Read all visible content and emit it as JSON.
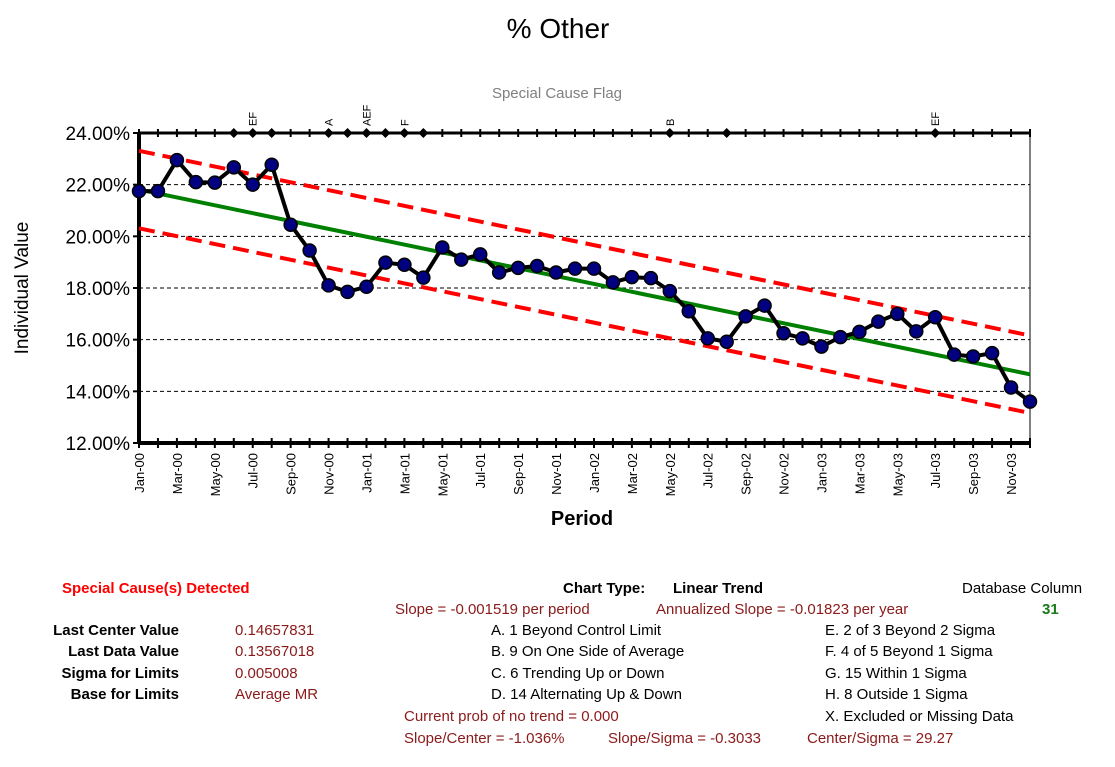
{
  "chart_data": {
    "type": "line",
    "title": "% Other",
    "flag_title": "Special Cause Flag",
    "xlabel": "Period",
    "ylabel": "Individual Value",
    "ylim": [
      0.12,
      0.24
    ],
    "yticks": [
      0.12,
      0.14,
      0.16,
      0.18,
      0.2,
      0.22,
      0.24
    ],
    "ytick_labels": [
      "12.00%",
      "14.00%",
      "16.00%",
      "18.00%",
      "20.00%",
      "22.00%",
      "24.00%"
    ],
    "grid": "horizontal dashed",
    "periods": [
      "Jan-00",
      "Feb-00",
      "Mar-00",
      "Apr-00",
      "May-00",
      "Jun-00",
      "Jul-00",
      "Aug-00",
      "Sep-00",
      "Oct-00",
      "Nov-00",
      "Dec-00",
      "Jan-01",
      "Feb-01",
      "Mar-01",
      "Apr-01",
      "May-01",
      "Jun-01",
      "Jul-01",
      "Aug-01",
      "Sep-01",
      "Oct-01",
      "Nov-01",
      "Dec-01",
      "Jan-02",
      "Feb-02",
      "Mar-02",
      "Apr-02",
      "May-02",
      "Jun-02",
      "Jul-02",
      "Aug-02",
      "Sep-02",
      "Oct-02",
      "Nov-02",
      "Dec-02",
      "Jan-03",
      "Feb-03",
      "Mar-03",
      "Apr-03",
      "May-03",
      "Jun-03",
      "Jul-03",
      "Aug-03",
      "Sep-03",
      "Oct-03",
      "Nov-03",
      "Dec-03"
    ],
    "x_tick_labels": [
      "Jan-00",
      "Mar-00",
      "May-00",
      "Jul-00",
      "Sep-00",
      "Nov-00",
      "Jan-01",
      "Mar-01",
      "May-01",
      "Jul-01",
      "Sep-01",
      "Nov-01",
      "Jan-02",
      "Mar-02",
      "May-02",
      "Jul-02",
      "Sep-02",
      "Nov-02",
      "Jan-03",
      "Mar-03",
      "May-03",
      "Jul-03",
      "Sep-03",
      "Nov-03"
    ],
    "series": [
      {
        "name": "Individual Value",
        "color": "#000000",
        "marker_color": "#000080",
        "values": [
          0.2175,
          0.2175,
          0.2295,
          0.221,
          0.2208,
          0.2267,
          0.22,
          0.2277,
          0.2045,
          0.1945,
          0.181,
          0.1785,
          0.1805,
          0.1898,
          0.189,
          0.184,
          0.1957,
          0.191,
          0.193,
          0.186,
          0.1878,
          0.1885,
          0.186,
          0.1875,
          0.1875,
          0.1822,
          0.1842,
          0.1838,
          0.1788,
          0.171,
          0.1605,
          0.1592,
          0.169,
          0.1732,
          0.1625,
          0.1605,
          0.1573,
          0.161,
          0.163,
          0.167,
          0.17,
          0.1632,
          0.1687,
          0.1542,
          0.1535,
          0.1548,
          0.1415,
          0.136
        ]
      },
      {
        "name": "Center Line",
        "color": "#008000",
        "start": 0.2181,
        "end": 0.14657831
      },
      {
        "name": "Upper Control Limit",
        "color": "#ff0000",
        "start": 0.2331,
        "end": 0.1616
      },
      {
        "name": "Lower Control Limit",
        "color": "#ff0000",
        "start": 0.2031,
        "end": 0.1316
      }
    ],
    "flag_markers": [
      5,
      6,
      7,
      10,
      11,
      12,
      13,
      14,
      15,
      28,
      31,
      42
    ],
    "flag_labels": [
      {
        "index": 6,
        "text": "EF"
      },
      {
        "index": 10,
        "text": "A"
      },
      {
        "index": 12,
        "text": "AEF"
      },
      {
        "index": 14,
        "text": "F"
      },
      {
        "index": 28,
        "text": "B"
      },
      {
        "index": 42,
        "text": "EF"
      }
    ]
  },
  "info": {
    "special_cause": "Special Cause(s) Detected",
    "chart_type_label": "Chart Type:",
    "chart_type_value": "Linear Trend",
    "database_column_label": "Database Column",
    "database_column_value": "31",
    "slope": "Slope = -0.001519 per period",
    "annualized_slope": "Annualized Slope = -0.01823 per year",
    "stats": [
      {
        "label": "Last Center Value",
        "value": "0.14657831"
      },
      {
        "label": "Last Data Value",
        "value": "0.13567018"
      },
      {
        "label": "Sigma for Limits",
        "value": "0.005008"
      },
      {
        "label": "Base for Limits",
        "value": "Average MR"
      }
    ],
    "rules_left": [
      "A.  1 Beyond Control Limit",
      "B.  9 On One Side of Average",
      "C.  6 Trending Up or Down",
      "D.  14 Alternating  Up & Down"
    ],
    "rules_right": [
      "E.  2 of 3 Beyond 2 Sigma",
      "F.  4 of 5 Beyond 1 Sigma",
      "G.  15 Within 1 Sigma",
      "H.  8 Outside 1 Sigma",
      "X.  Excluded or Missing Data"
    ],
    "prob_no_trend": "Current prob of no trend = 0.000",
    "slope_center": "Slope/Center = -1.036%",
    "slope_sigma": "Slope/Sigma = -0.3033",
    "center_sigma": "Center/Sigma = 29.27"
  }
}
